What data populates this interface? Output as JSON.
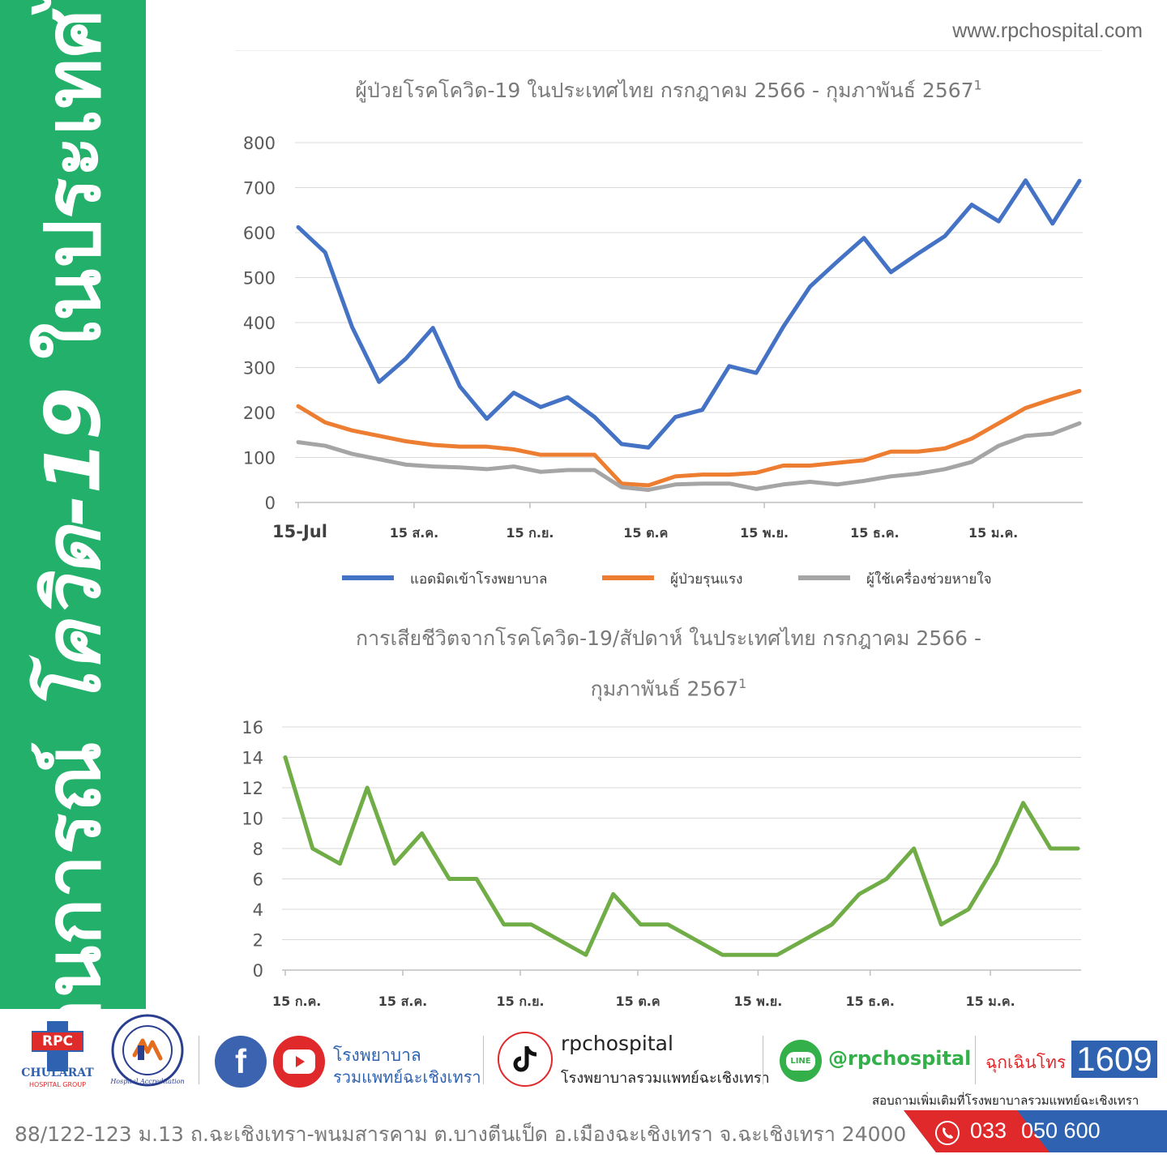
{
  "banner": {
    "title_prefix": "สถานการณ์ ",
    "title_emph": "โควิด-19",
    "title_suffix": " ในประเทศไทย"
  },
  "site_url": "www.rpchospital.com",
  "chart1_title": "ผู้ป่วยโรคโควิด-19 ในประเทศไทย กรกฎาคม 2566 - กุมภาพันธ์ 2567",
  "chart2_title_line1": "การเสียชีวิตจากโรคโควิด-19/สัปดาห์ ในประเทศไทย กรกฎาคม 2566 -",
  "chart2_title_line2": "กุมภาพันธ์ 2567",
  "footnote_mark": "1",
  "chart_data": [
    {
      "type": "line",
      "title": "ผู้ป่วยโรคโควิด-19 ในประเทศไทย กรกฎาคม 2566 - กุมภาพันธ์ 2567",
      "ylim": [
        0,
        800
      ],
      "yticks": [
        0,
        100,
        200,
        300,
        400,
        500,
        600,
        700,
        800
      ],
      "xtick_labels": [
        {
          "i": 0,
          "label": "15-Jul"
        },
        {
          "i": 4.3,
          "label": "15 ส.ค."
        },
        {
          "i": 8.6,
          "label": "15 ก.ย."
        },
        {
          "i": 12.9,
          "label": "15 ต.ค"
        },
        {
          "i": 17.3,
          "label": "15 พ.ย."
        },
        {
          "i": 21.4,
          "label": "15 ธ.ค."
        },
        {
          "i": 25.8,
          "label": "15 ม.ค."
        }
      ],
      "grid": true,
      "legend_position": "bottom",
      "series": [
        {
          "name": "แอดมิดเข้าโรงพยาบาล",
          "color": "#4472c4",
          "values": [
            612,
            556,
            390,
            268,
            320,
            388,
            258,
            186,
            244,
            212,
            234,
            190,
            130,
            122,
            190,
            206,
            303,
            288,
            390,
            480,
            535,
            588,
            512,
            553,
            592,
            662,
            625,
            716,
            620,
            715
          ]
        },
        {
          "name": "ผู้ป่วยรุนแรง",
          "color": "#ed7d31",
          "values": [
            214,
            178,
            160,
            148,
            136,
            128,
            124,
            124,
            118,
            106,
            106,
            106,
            42,
            38,
            58,
            62,
            62,
            66,
            82,
            82,
            88,
            94,
            113,
            113,
            120,
            142,
            176,
            210,
            230,
            248
          ]
        },
        {
          "name": "ผู้ใช้เครื่องช่วยหายใจ",
          "color": "#a5a5a5",
          "values": [
            134,
            126,
            108,
            96,
            84,
            80,
            78,
            74,
            80,
            68,
            72,
            72,
            34,
            28,
            40,
            42,
            42,
            30,
            40,
            46,
            40,
            48,
            58,
            64,
            74,
            90,
            126,
            148,
            153,
            176
          ]
        }
      ]
    },
    {
      "type": "line",
      "title": "การเสียชีวิตจากโรคโควิด-19/สัปดาห์ ในประเทศไทย กรกฎาคม 2566 - กุมภาพันธ์ 2567",
      "ylim": [
        0,
        16
      ],
      "yticks": [
        0,
        2,
        4,
        6,
        8,
        10,
        12,
        14,
        16
      ],
      "xtick_labels": [
        {
          "i": 0,
          "label": "15 ก.ค."
        },
        {
          "i": 4.3,
          "label": "15 ส.ค."
        },
        {
          "i": 8.6,
          "label": "15 ก.ย."
        },
        {
          "i": 12.9,
          "label": "15 ต.ค"
        },
        {
          "i": 17.3,
          "label": "15 พ.ย."
        },
        {
          "i": 21.4,
          "label": "15 ธ.ค."
        },
        {
          "i": 25.8,
          "label": "15 ม.ค."
        }
      ],
      "grid": true,
      "series": [
        {
          "color": "#70ad47",
          "values": [
            14,
            8,
            7,
            12,
            7,
            9,
            6,
            6,
            3,
            3,
            2,
            1,
            5,
            3,
            3,
            2,
            1,
            1,
            1,
            2,
            3,
            5,
            6,
            8,
            3,
            4,
            7,
            11,
            8,
            8
          ]
        }
      ]
    }
  ],
  "footer": {
    "logo_name": "RPC",
    "logo_group": "CHULARAT",
    "logo_group_sub": "HOSPITAL GROUP",
    "accreditation_text": "Hospital Accreditation",
    "fb_hospital_line1": "โรงพยาบาล",
    "fb_hospital_line2": "รวมแพทย์ฉะเชิงเทรา",
    "tiktok_handle": "rpchospital",
    "tiktok_sub": "โรงพยาบาลรวมแพทย์ฉะเชิงเทรา",
    "line_label": "LINE",
    "line_handle": "@rpchospital",
    "emergency_label": "ฉุกเฉินโทร",
    "emergency_number": "1609",
    "inquiry": "สอบถามเพิ่มเติมที่โรงพยาบาลรวมแพทย์ฉะเชิงเทรา",
    "address": "88/122-123 ม.13 ถ.ฉะเชิงเทรา-พนมสารคาม ต.บางตีนเป็ด อ.เมืองฉะเชิงเทรา จ.ฉะเชิงเทรา 24000",
    "phone_part1": "033",
    "phone_part2": "050 600"
  }
}
